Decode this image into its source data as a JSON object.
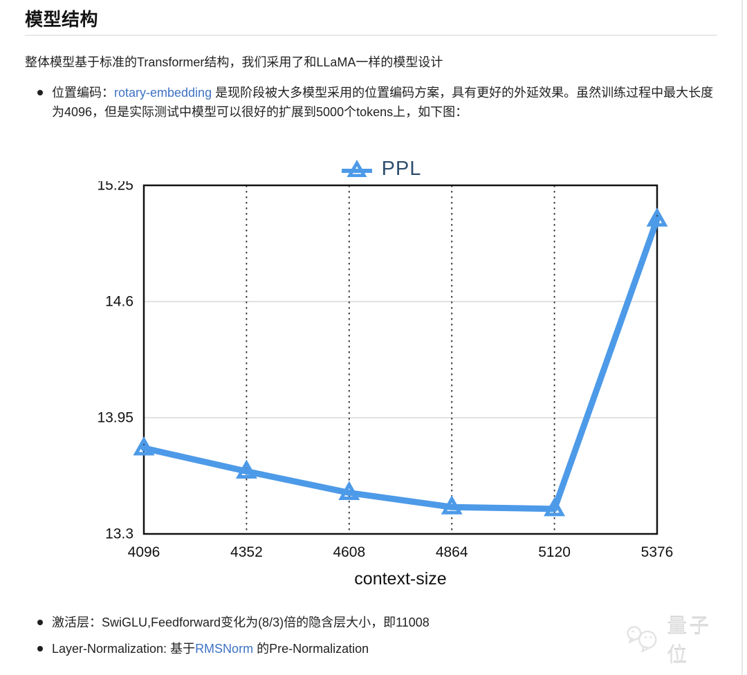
{
  "page": {
    "heading": "模型结构",
    "intro": "整体模型基于标准的Transformer结构，我们采用了和LLaMA一样的模型设计"
  },
  "bullets": {
    "position_encoding": {
      "prefix": "位置编码：",
      "link": "rotary-embedding",
      "suffix": " 是现阶段被大多模型采用的位置编码方案，具有更好的外延效果。虽然训练过程中最大长度为4096，但是实际测试中模型可以很好的扩展到5000个tokens上，如下图："
    },
    "activation": "激活层：SwiGLU,Feedforward变化为(8/3)倍的隐含层大小，即11008",
    "layer_norm": {
      "prefix": "Layer-Normalization: 基于",
      "link": "RMSNorm",
      "suffix": " 的Pre-Normalization"
    }
  },
  "chart_data": {
    "type": "line",
    "legend": "PPL",
    "x": [
      4096,
      4352,
      4608,
      4864,
      5120,
      5376
    ],
    "values": [
      13.78,
      13.65,
      13.53,
      13.45,
      13.44,
      15.06
    ],
    "xlabel": "context-size",
    "ylabel": "",
    "xlim": [
      4096,
      5376
    ],
    "ylim": [
      13.3,
      15.25
    ],
    "yticks": [
      13.3,
      13.95,
      14.6,
      15.25
    ],
    "xticks": [
      4096,
      4352,
      4608,
      4864,
      5120,
      5376
    ],
    "marker": "triangle-up-hollow",
    "grid": {
      "horizontal": "solid-light-inner",
      "vertical": "dotted-inner"
    },
    "legend_position": "top-center",
    "line_color": "#4D9AE8",
    "legend_text_color": "#2F4E6E"
  },
  "watermark": {
    "text": "量子位",
    "logo": "qbitai-bubbles-logo"
  },
  "colors": {
    "text": "#1F1F1F",
    "link": "#3E72C4",
    "axis": "#111111",
    "grid": "#D8D8D8",
    "divider": "#E9E9E9"
  }
}
